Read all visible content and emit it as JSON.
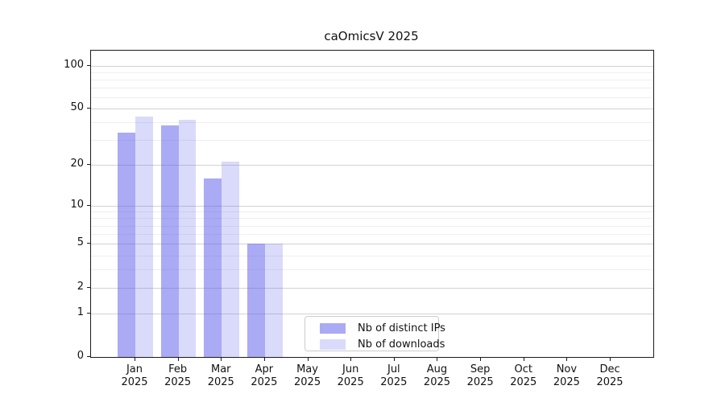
{
  "title": "caOmicsV 2025",
  "chart_data": {
    "type": "bar",
    "categories": [
      "Jan",
      "Feb",
      "Mar",
      "Apr",
      "May",
      "Jun",
      "Jul",
      "Aug",
      "Sep",
      "Oct",
      "Nov",
      "Dec"
    ],
    "x_year_label": "2025",
    "series": [
      {
        "name": "Nb of distinct IPs",
        "values": [
          34,
          38,
          16,
          5,
          0,
          0,
          0,
          0,
          0,
          0,
          0,
          0
        ],
        "color": "rgba(85,85,235,0.5)"
      },
      {
        "name": "Nb of downloads",
        "values": [
          44,
          42,
          21,
          5,
          0,
          0,
          0,
          0,
          0,
          0,
          0,
          0
        ],
        "color": "rgba(85,85,235,0.22)"
      }
    ],
    "y_ticks": [
      0,
      1,
      2,
      5,
      10,
      20,
      50,
      100
    ],
    "y_minor_ticks": [
      3,
      4,
      6,
      7,
      8,
      9,
      30,
      40,
      60,
      70,
      80,
      90
    ],
    "y_scale": "log1p",
    "y_max": 127,
    "grid": "on",
    "legend_position": "lower center"
  },
  "colors": {
    "bar_dark": "rgba(85,85,235,0.5)",
    "bar_light": "rgba(85,85,235,0.22)",
    "grid_major": "#d2d2d2",
    "grid_minor": "#efefef",
    "frame": "#1a1a1a",
    "background": "#ffffff"
  }
}
